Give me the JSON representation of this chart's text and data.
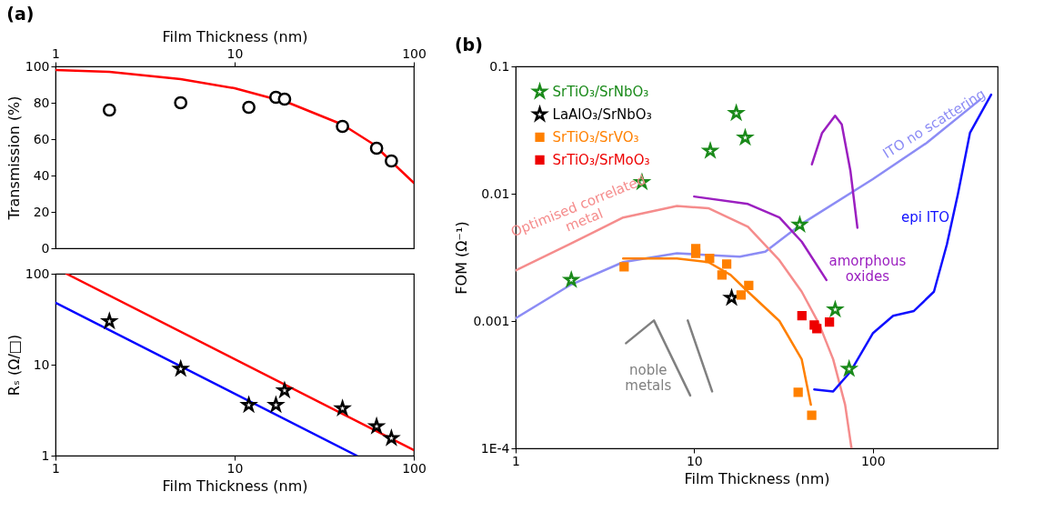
{
  "chart_data": [
    {
      "type": "scatter",
      "title": "(a)",
      "xlabel": "Film Thickness (nm)",
      "ylabel": "Transmission (%)",
      "log": "x",
      "xlim": [
        1,
        100
      ],
      "xticks": [
        1,
        10,
        100
      ],
      "ylim": [
        0,
        100
      ],
      "yticks": [
        0,
        20,
        40,
        60,
        80,
        100
      ],
      "series": [
        {
          "marker": "circle",
          "color": "#000000",
          "x": [
            2,
            5,
            12,
            17,
            19,
            40,
            62,
            75
          ],
          "values": [
            76,
            80,
            77.5,
            83,
            82,
            67,
            55,
            48
          ]
        },
        {
          "type": "line",
          "color": "#ff0000",
          "x": [
            1,
            2,
            5,
            10,
            20,
            40,
            60,
            80,
            100
          ],
          "values": [
            98,
            97,
            93,
            88,
            80,
            68,
            57,
            45,
            36
          ]
        }
      ]
    },
    {
      "type": "scatter",
      "xlabel": "Film Thickness (nm)",
      "ylabel": "Rₛ (Ω/□)",
      "log": "xy",
      "xlim": [
        1,
        100
      ],
      "xticks": [
        1,
        10,
        100
      ],
      "ylim": [
        1,
        100
      ],
      "yticks": [
        1,
        10,
        100
      ],
      "series": [
        {
          "type": "line",
          "color": "#ff0000",
          "x": [
            1.15,
            100
          ],
          "values": [
            100,
            1.15
          ]
        },
        {
          "type": "line",
          "color": "#0000ff",
          "x": [
            1,
            48
          ],
          "values": [
            48,
            1
          ]
        },
        {
          "marker": "star",
          "color": "#000000",
          "x": [
            2,
            5,
            12,
            17,
            19,
            40,
            62,
            75
          ],
          "values": [
            30,
            9,
            3.6,
            3.6,
            5.2,
            3.3,
            2.1,
            1.55
          ]
        }
      ]
    },
    {
      "type": "scatter",
      "title": "(b)",
      "xlabel": "Film Thickness (nm)",
      "ylabel": "FOM (Ω⁻¹)",
      "log": "xy",
      "xlim": [
        1,
        500
      ],
      "xticks": [
        1,
        10,
        100
      ],
      "ylim": [
        0.0001,
        0.1
      ],
      "yticks": [
        {
          "value": 0.0001,
          "label": "1E-4"
        },
        0.001,
        0.01,
        0.1
      ],
      "legend": "top left",
      "series": [
        {
          "type": "line",
          "color": "#8c8cf5",
          "x": [
            1,
            2,
            4,
            8,
            12,
            18,
            25,
            40,
            100,
            200,
            400
          ],
          "values": [
            0.00105,
            0.0019,
            0.0029,
            0.0034,
            0.0033,
            0.0032,
            0.0035,
            0.0058,
            0.013,
            0.025,
            0.055
          ]
        },
        {
          "type": "line",
          "color": "#f58c8c",
          "x": [
            1,
            2,
            4,
            8,
            12,
            20,
            30,
            40,
            50,
            60,
            70,
            76
          ],
          "values": [
            0.0025,
            0.004,
            0.0065,
            0.008,
            0.0077,
            0.0055,
            0.003,
            0.0017,
            0.00095,
            0.0005,
            0.00022,
            0.0001
          ]
        },
        {
          "type": "line",
          "color": "#ff8000",
          "x": [
            4,
            8,
            12,
            16,
            20,
            30,
            40,
            45
          ],
          "values": [
            0.0031,
            0.0031,
            0.0029,
            0.0023,
            0.0017,
            0.001,
            0.0005,
            0.00022
          ]
        },
        {
          "type": "line",
          "color": "#9b1fc0",
          "x": [
            10,
            20,
            30,
            40,
            55
          ],
          "values": [
            0.0095,
            0.0083,
            0.0065,
            0.0042,
            0.0021
          ]
        },
        {
          "type": "line",
          "color": "#9b1fc0",
          "x": [
            45.6,
            52,
            61.5,
            67,
            75,
            82
          ],
          "values": [
            0.017,
            0.03,
            0.041,
            0.035,
            0.015,
            0.0054
          ]
        },
        {
          "type": "line",
          "color": "#1010ff",
          "x": [
            47,
            60,
            75,
            100,
            130,
            170,
            220,
            260,
            300,
            350,
            460
          ],
          "values": [
            0.00029,
            0.00028,
            0.0004,
            0.0008,
            0.0011,
            0.0012,
            0.0017,
            0.004,
            0.01,
            0.03,
            0.06
          ]
        },
        {
          "type": "line",
          "color": "#808080",
          "x": [
            4.15,
            5.95,
            9.5
          ],
          "values": [
            0.00067,
            0.00101,
            0.00026
          ]
        },
        {
          "type": "line",
          "color": "#808080",
          "x": [
            9.2,
            12.6
          ],
          "values": [
            0.00101,
            0.00028
          ]
        },
        {
          "marker": "star",
          "name": "SrTiO₃/SrNbO₃",
          "color": "#1a8a1a",
          "x": [
            2.05,
            5.1,
            12.3,
            17.2,
            19.3,
            39,
            61.6,
            73.7
          ],
          "values": [
            0.0021,
            0.0123,
            0.0217,
            0.043,
            0.0275,
            0.0057,
            0.00123,
            0.00042
          ]
        },
        {
          "marker": "star",
          "name": "LaAlO₃/SrNbO₃",
          "color": "#000000",
          "x": [
            16.2
          ],
          "values": [
            0.00152
          ]
        },
        {
          "marker": "square",
          "name": "SrTiO₃/SrVO₃",
          "color": "#ff8000",
          "x": [
            4.05,
            10.2,
            10.2,
            12.2,
            15.2,
            14.3,
            20.2,
            18.3,
            38.2,
            45.5
          ],
          "values": [
            0.00267,
            0.0037,
            0.0034,
            0.0031,
            0.0028,
            0.0023,
            0.0019,
            0.0016,
            0.000276,
            0.000182
          ]
        },
        {
          "marker": "square",
          "name": "SrTiO₃/SrMoO₃",
          "color": "#ee0000",
          "x": [
            40.1,
            47,
            48.6,
            57.2
          ],
          "values": [
            0.0011,
            0.00093,
            0.00087,
            0.00098
          ]
        }
      ],
      "annotations": [
        "Optimised correlated\nmetal",
        "ITO no scattering",
        "epi ITO",
        "amorphous\noxides",
        "noble\nmetals"
      ]
    }
  ]
}
